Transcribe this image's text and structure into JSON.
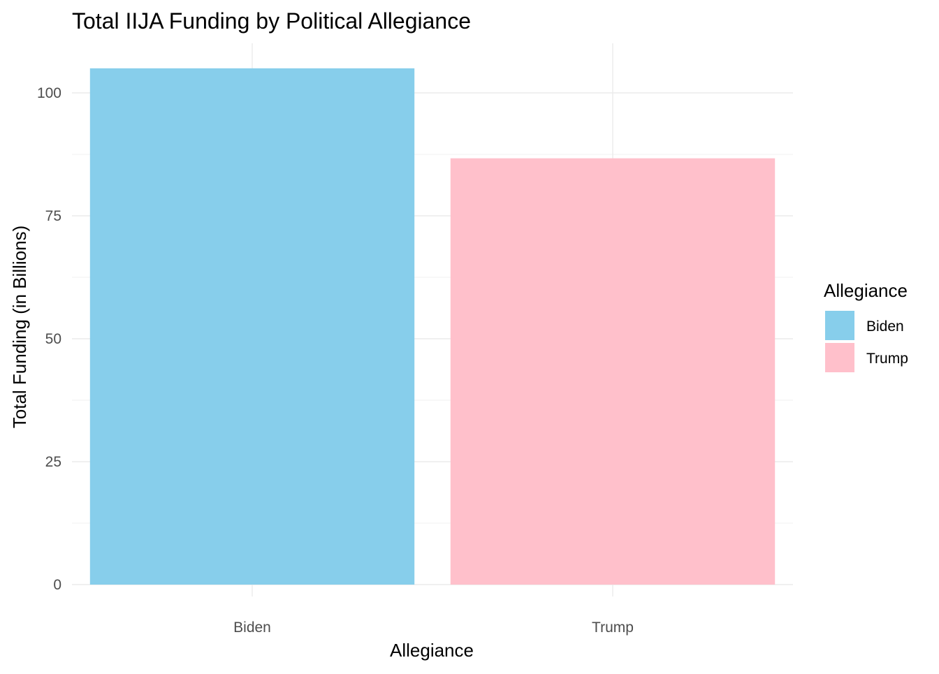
{
  "chart_data": {
    "type": "bar",
    "title": "Total IIJA Funding by Political Allegiance",
    "xlabel": "Allegiance",
    "ylabel": "Total Funding (in Billions)",
    "categories": [
      "Biden",
      "Trump"
    ],
    "values": [
      105.0,
      86.7
    ],
    "colors": [
      "#87CEEB",
      "#FFC0CB"
    ],
    "ylim": [
      0,
      110
    ],
    "yticks": [
      0,
      25,
      50,
      75,
      100
    ],
    "grid": true,
    "legend": {
      "title": "Allegiance",
      "placement": "right",
      "entries": [
        {
          "label": "Biden",
          "color": "#87CEEB"
        },
        {
          "label": "Trump",
          "color": "#FFC0CB"
        }
      ]
    }
  }
}
